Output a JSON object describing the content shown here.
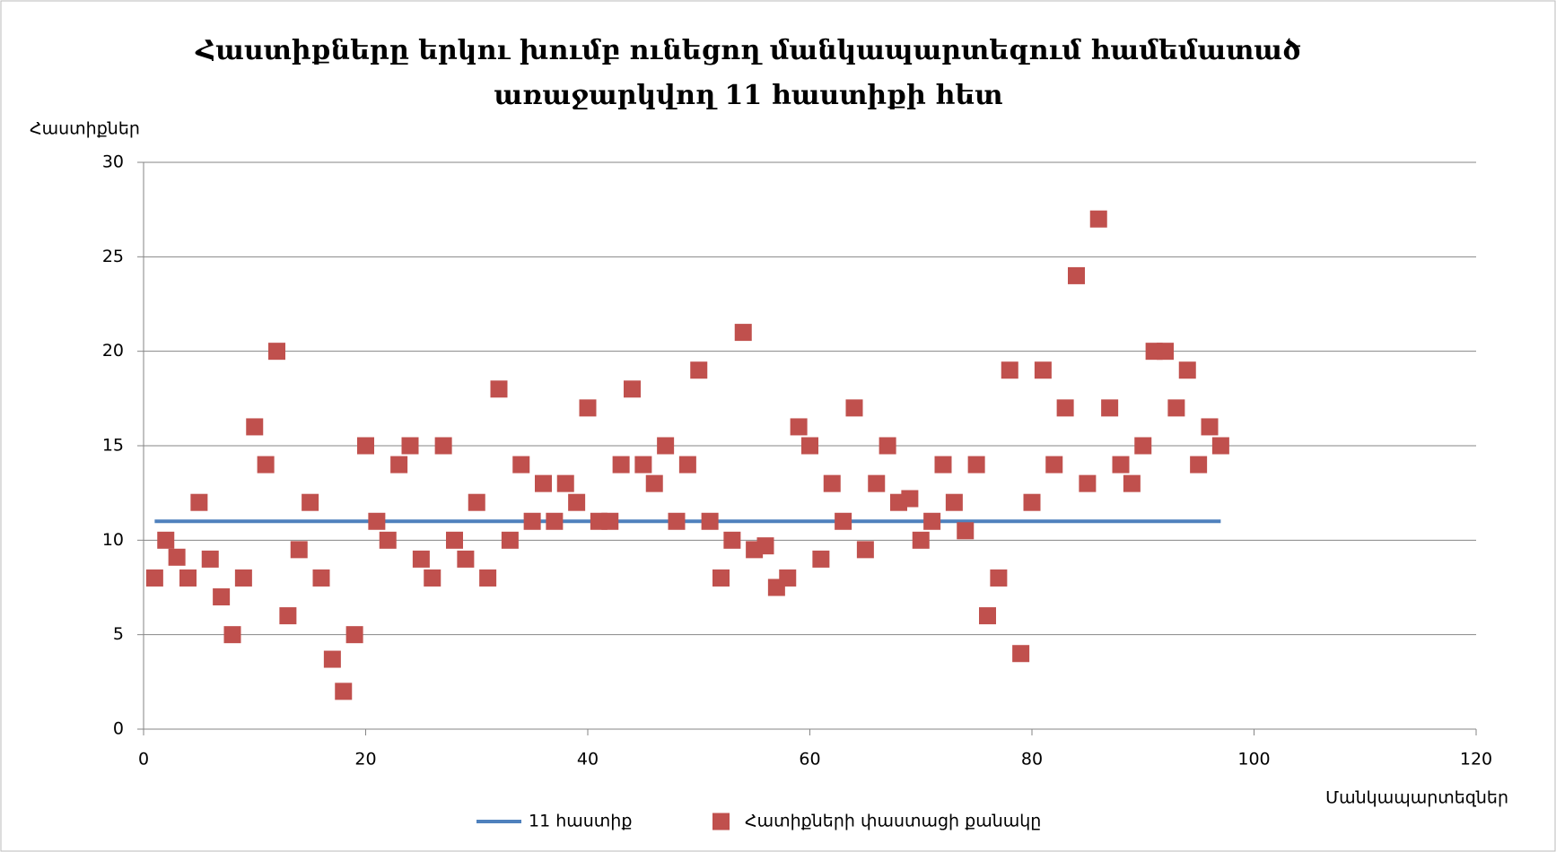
{
  "chart_data": {
    "type": "scatter",
    "title": [
      "Հաստիքները երկու խումբ ունեցող մանկապարտեզում համեմատած",
      "առաջարկվող 11 հաստիքի հետ"
    ],
    "y_label": "Հաստիքներ",
    "x_label": "Մանկապարտեզներ",
    "xlim": [
      0,
      120
    ],
    "xticks": [
      0,
      20,
      40,
      60,
      80,
      100,
      120
    ],
    "ylim": [
      0,
      30
    ],
    "yticks": [
      0,
      5,
      10,
      15,
      20,
      25,
      30
    ],
    "grid": true,
    "legend": "bottom",
    "series": [
      {
        "name": "11 հաստիք",
        "color": "#4f81bd",
        "kind": "line",
        "x": [
          1,
          97
        ],
        "values": [
          11,
          11
        ]
      },
      {
        "name": "Հատիքների փաստացի քանակը",
        "color": "#c0504d",
        "kind": "marker",
        "x": [
          1,
          2,
          3,
          4,
          5,
          6,
          7,
          8,
          9,
          10,
          11,
          12,
          13,
          14,
          15,
          16,
          17,
          18,
          19,
          20,
          21,
          22,
          23,
          24,
          25,
          26,
          27,
          28,
          29,
          30,
          31,
          32,
          33,
          34,
          35,
          36,
          37,
          38,
          39,
          40,
          41,
          42,
          43,
          44,
          45,
          46,
          47,
          48,
          49,
          50,
          51,
          52,
          53,
          54,
          55,
          56,
          57,
          58,
          59,
          60,
          61,
          62,
          63,
          64,
          65,
          66,
          67,
          68,
          69,
          70,
          71,
          72,
          73,
          74,
          75,
          76,
          77,
          78,
          79,
          80,
          81,
          82,
          83,
          84,
          85,
          86,
          87,
          88,
          89,
          90,
          91,
          92,
          93,
          94,
          95,
          96,
          97
        ],
        "values": [
          8,
          10,
          9.1,
          8,
          12,
          9,
          7,
          5,
          8,
          16,
          14,
          20,
          6,
          9.5,
          12,
          8,
          3.7,
          2,
          5,
          15,
          11,
          10,
          14,
          15,
          9,
          8,
          15,
          10,
          9,
          12,
          8,
          18,
          10,
          14,
          11,
          13,
          11,
          13,
          12,
          17,
          11,
          11,
          14,
          18,
          14,
          13,
          15,
          11,
          14,
          19,
          11,
          8,
          10,
          21,
          9.5,
          9.7,
          7.5,
          8,
          16,
          15,
          9,
          13,
          11,
          17,
          9.5,
          13,
          15,
          12,
          12.2,
          10,
          11,
          14,
          12,
          10.5,
          14,
          6,
          8,
          19,
          4,
          12,
          19,
          14,
          17,
          24,
          13,
          27,
          17,
          14,
          13,
          15,
          20,
          20,
          17,
          19,
          14,
          16,
          15
        ]
      }
    ]
  }
}
